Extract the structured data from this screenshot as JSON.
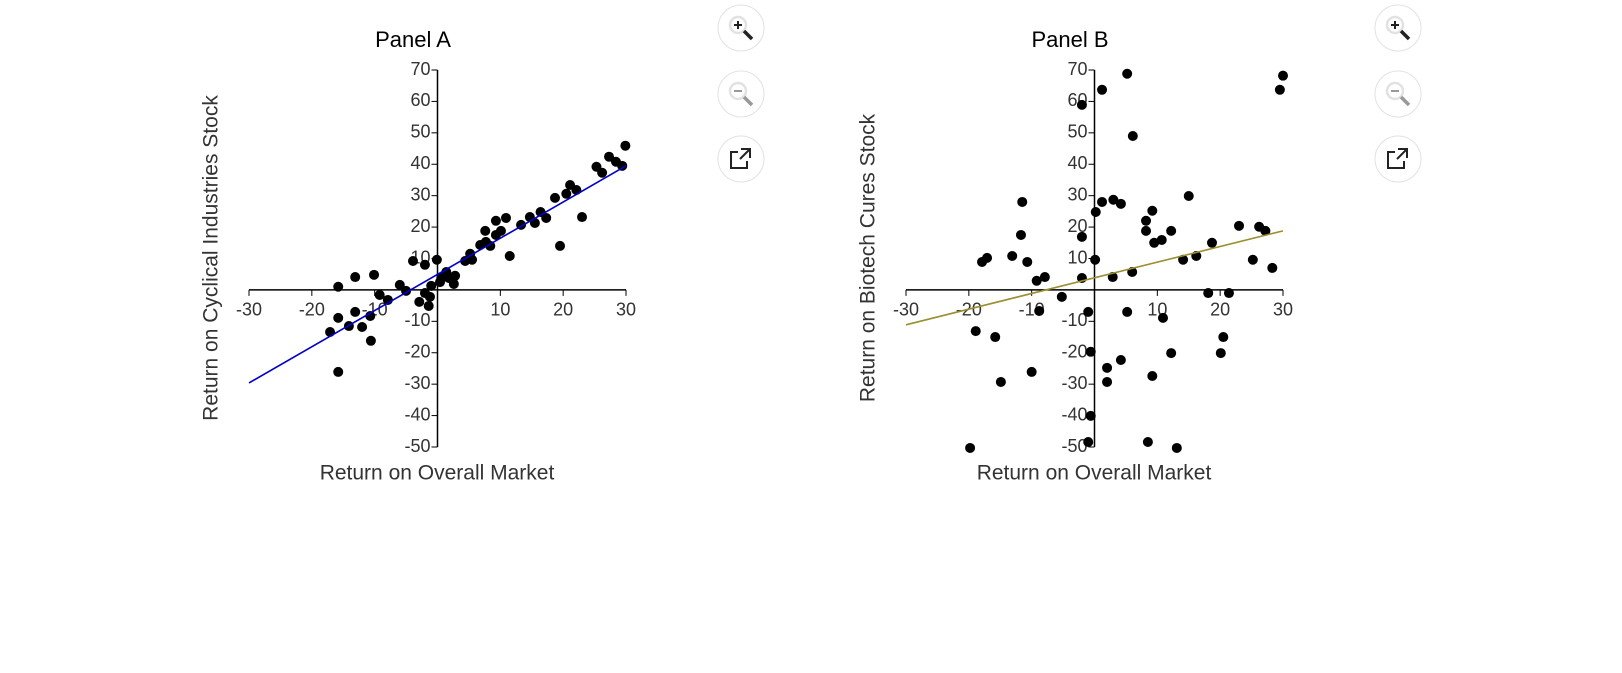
{
  "chart_data": [
    {
      "type": "scatter",
      "title": "Panel A",
      "xlabel": "Return on Overall Market",
      "ylabel": "Return on Cyclical Industries Stock",
      "xlim": [
        -30,
        30
      ],
      "ylim": [
        -50,
        70
      ],
      "xticks": [
        -30,
        -20,
        -10,
        10,
        20,
        30
      ],
      "yticks": [
        -50,
        -40,
        -30,
        -20,
        -10,
        10,
        20,
        30,
        40,
        50,
        60,
        70
      ],
      "series": [
        {
          "color": "#000000",
          "x": [
            -15.8,
            -17.1,
            -15.8,
            -15.8,
            -13.1,
            -13.1,
            -14.1,
            -12.0,
            -10.7,
            -10.6,
            -10.1,
            -9.2,
            -7.9,
            -6.0,
            -5.0,
            -3.9,
            -2.0,
            -2.9,
            -2.0,
            -1.2,
            -1.4,
            -1.0,
            -0.1,
            0.4,
            0.6,
            1.4,
            1.8,
            2.6,
            2.8,
            4.4,
            5.2,
            5.5,
            6.8,
            7.6,
            8.4,
            7.7,
            9.3,
            9.3,
            10.1,
            10.9,
            11.5,
            13.3,
            14.7,
            15.5,
            16.4,
            17.3,
            18.7,
            19.5,
            20.5,
            21.1,
            22.1,
            23.0,
            25.3,
            26.2,
            27.3,
            28.4,
            29.4,
            29.9
          ],
          "values": [
            1.0,
            -13.4,
            -8.9,
            -26.1,
            4.1,
            -7.0,
            -11.5,
            -11.8,
            -8.3,
            -16.2,
            4.8,
            -1.6,
            -3.2,
            1.6,
            -0.3,
            9.2,
            8.0,
            -3.8,
            -1.0,
            -2.2,
            -5.1,
            1.3,
            9.6,
            2.5,
            3.8,
            5.7,
            3.8,
            1.9,
            4.5,
            9.2,
            11.5,
            9.6,
            14.3,
            18.8,
            14.0,
            15.3,
            17.5,
            22.0,
            18.8,
            22.9,
            10.8,
            20.7,
            23.2,
            21.3,
            24.8,
            22.9,
            29.3,
            14.0,
            30.6,
            33.4,
            31.8,
            23.2,
            39.2,
            37.3,
            42.4,
            40.8,
            39.5,
            45.9
          ]
        },
        {
          "color": "#0000cc",
          "line": true,
          "x": [
            -30,
            30
          ],
          "values": [
            -29.6,
            39.5
          ]
        }
      ]
    },
    {
      "type": "scatter",
      "title": "Panel B",
      "xlabel": "Return on Overall Market",
      "ylabel": "Return on Biotech Cures Stock",
      "xlim": [
        -30,
        30
      ],
      "ylim": [
        -50,
        70
      ],
      "xticks": [
        -30,
        -20,
        -10,
        10,
        20,
        30
      ],
      "yticks": [
        -50,
        -40,
        -30,
        -20,
        -10,
        10,
        20,
        30,
        40,
        50,
        60,
        70
      ],
      "series": [
        {
          "color": "#000000",
          "x": [
            -2.0,
            1.2,
            5.2,
            30.0,
            29.5,
            6.1,
            -11.5,
            1.2,
            3.0,
            4.2,
            0.2,
            9.2,
            8.2,
            15.0,
            -11.7,
            -2.0,
            8.2,
            12.2,
            9.5,
            10.7,
            18.7,
            23.0,
            26.2,
            27.2,
            -13.1,
            -17.1,
            -17.9,
            -10.7,
            0.1,
            14.1,
            16.2,
            25.2,
            28.3,
            6.0,
            2.9,
            -2.0,
            -7.9,
            -9.2,
            -5.2,
            18.1,
            21.4,
            -8.8,
            -1.0,
            5.2,
            10.9,
            -18.9,
            -15.8,
            20.5,
            -0.6,
            4.2,
            12.2,
            20.1,
            2.0,
            -10.0,
            -14.9,
            2.0,
            9.2,
            -0.6,
            -1.0,
            8.5,
            -19.8,
            13.1
          ],
          "values": [
            58.9,
            63.7,
            68.8,
            68.2,
            63.7,
            49.0,
            28.0,
            28.0,
            28.7,
            27.4,
            24.8,
            25.2,
            22.0,
            29.9,
            17.5,
            16.9,
            18.8,
            18.8,
            15.0,
            15.9,
            15.0,
            20.4,
            20.1,
            18.8,
            10.8,
            10.2,
            8.9,
            8.9,
            9.6,
            9.6,
            10.8,
            9.6,
            7.0,
            5.7,
            4.1,
            3.8,
            4.1,
            2.9,
            -2.2,
            -1.0,
            -1.0,
            -6.7,
            -7.0,
            -7.0,
            -8.9,
            -13.1,
            -15.0,
            -15.0,
            -19.7,
            -22.3,
            -20.1,
            -20.1,
            -24.8,
            -26.1,
            -29.3,
            -29.3,
            -27.4,
            -40.1,
            -48.4,
            -48.4,
            -50.3,
            -50.3
          ]
        },
        {
          "color": "#9a8f2e",
          "line": true,
          "x": [
            -30,
            30
          ],
          "values": [
            -11.1,
            18.8
          ]
        }
      ]
    }
  ]
}
